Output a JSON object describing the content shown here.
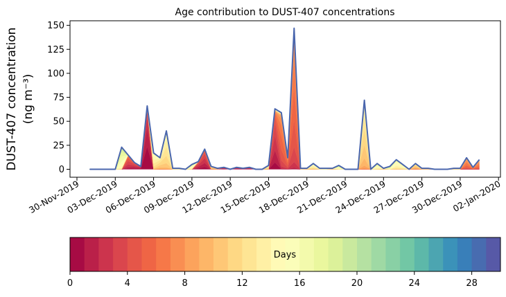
{
  "chart_data": {
    "type": "area",
    "title": "Age contribution to DUST-407 concentrations",
    "ylabel_line1": "DUST-407 concentration",
    "ylabel_line2": "(ng m⁻³)",
    "xlabel": "",
    "ylim": [
      -7,
      155
    ],
    "yticks": [
      0,
      25,
      50,
      75,
      100,
      125,
      150
    ],
    "xtick_labels": [
      "30-Nov-2019",
      "03-Dec-2019",
      "06-Dec-2019",
      "09-Dec-2019",
      "12-Dec-2019",
      "15-Dec-2019",
      "18-Dec-2019",
      "21-Dec-2019",
      "24-Dec-2019",
      "27-Dec-2019",
      "30-Dec-2019",
      "02-Jan-2020"
    ],
    "start_date": "01-Dec-2019",
    "step_days": 0.5,
    "total": [
      0,
      0,
      0,
      0,
      0,
      23,
      15,
      7,
      3,
      66,
      17,
      12,
      40,
      1,
      1,
      0,
      5,
      8,
      21,
      3,
      1,
      2,
      0,
      2,
      1,
      2,
      0,
      0,
      4,
      63,
      59,
      12,
      147,
      1,
      1,
      6,
      1,
      1,
      1,
      4,
      0,
      0,
      0,
      72,
      0,
      6,
      1,
      3,
      10,
      5,
      0,
      6,
      1,
      1,
      0,
      0,
      0,
      1,
      1,
      12,
      2,
      10
    ],
    "dominant_age_days": [
      0,
      0,
      0,
      0,
      0,
      16,
      3,
      2,
      1,
      0,
      13,
      11,
      12,
      15,
      15,
      15,
      15,
      2,
      2,
      10,
      10,
      1,
      1,
      1,
      1,
      1,
      1,
      1,
      12,
      2,
      5,
      5,
      5,
      14,
      12,
      13,
      15,
      18,
      12,
      16,
      12,
      12,
      12,
      11,
      11,
      15,
      12,
      17,
      14,
      14,
      12,
      10,
      12,
      12,
      12,
      12,
      12,
      14,
      14,
      6,
      6,
      6
    ],
    "colorbar": {
      "label": "Days",
      "range": [
        0,
        30
      ],
      "bins": 30,
      "ticks": [
        0,
        4,
        8,
        12,
        16,
        20,
        24,
        28
      ],
      "colormap": "Spectral"
    },
    "line_color": "#4a66ad"
  }
}
